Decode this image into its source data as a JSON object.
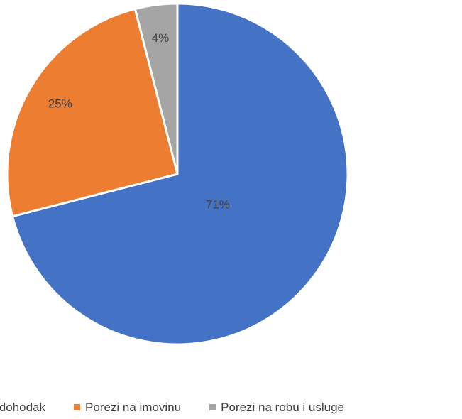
{
  "chart_data": {
    "type": "pie",
    "title": "",
    "categories": [
      "Porez na dohodak",
      "Porezi na imovinu",
      "Porezi na robu i usluge"
    ],
    "values": [
      71,
      25,
      4
    ],
    "data_labels": [
      "71%",
      "25%",
      "4%"
    ],
    "colors": [
      "#4472C4",
      "#ED7D31",
      "#A5A5A5"
    ],
    "legend_position": "bottom"
  }
}
